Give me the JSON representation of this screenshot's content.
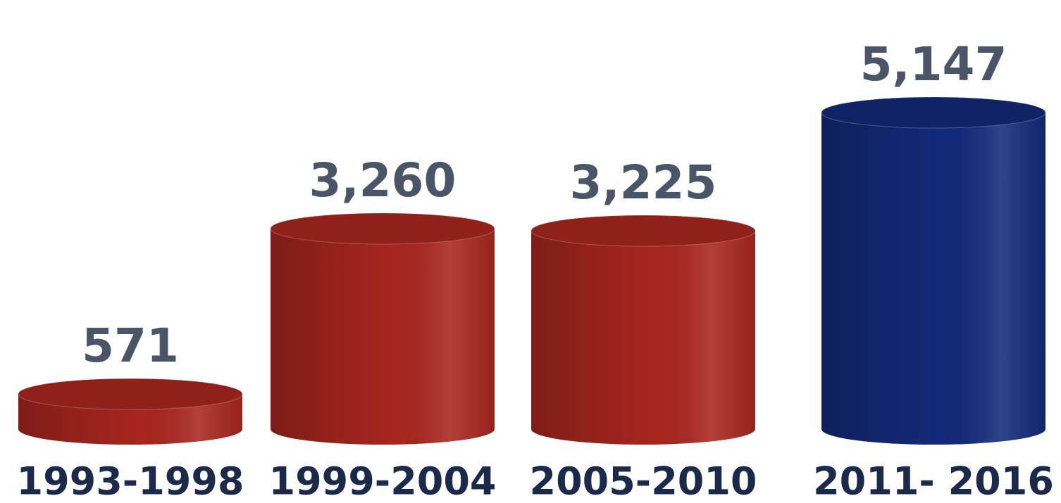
{
  "chart_data": {
    "type": "cylinder",
    "categories": [
      "1993-1998",
      "1999-2004",
      "2005-2010",
      "2011- 2016"
    ],
    "values": [
      571,
      3260,
      3225,
      5147
    ],
    "value_labels": [
      "571",
      "3,260",
      "3,225",
      "5,147"
    ],
    "colors": [
      "#a8261f",
      "#a8261f",
      "#a8261f",
      "#132a7a"
    ]
  }
}
